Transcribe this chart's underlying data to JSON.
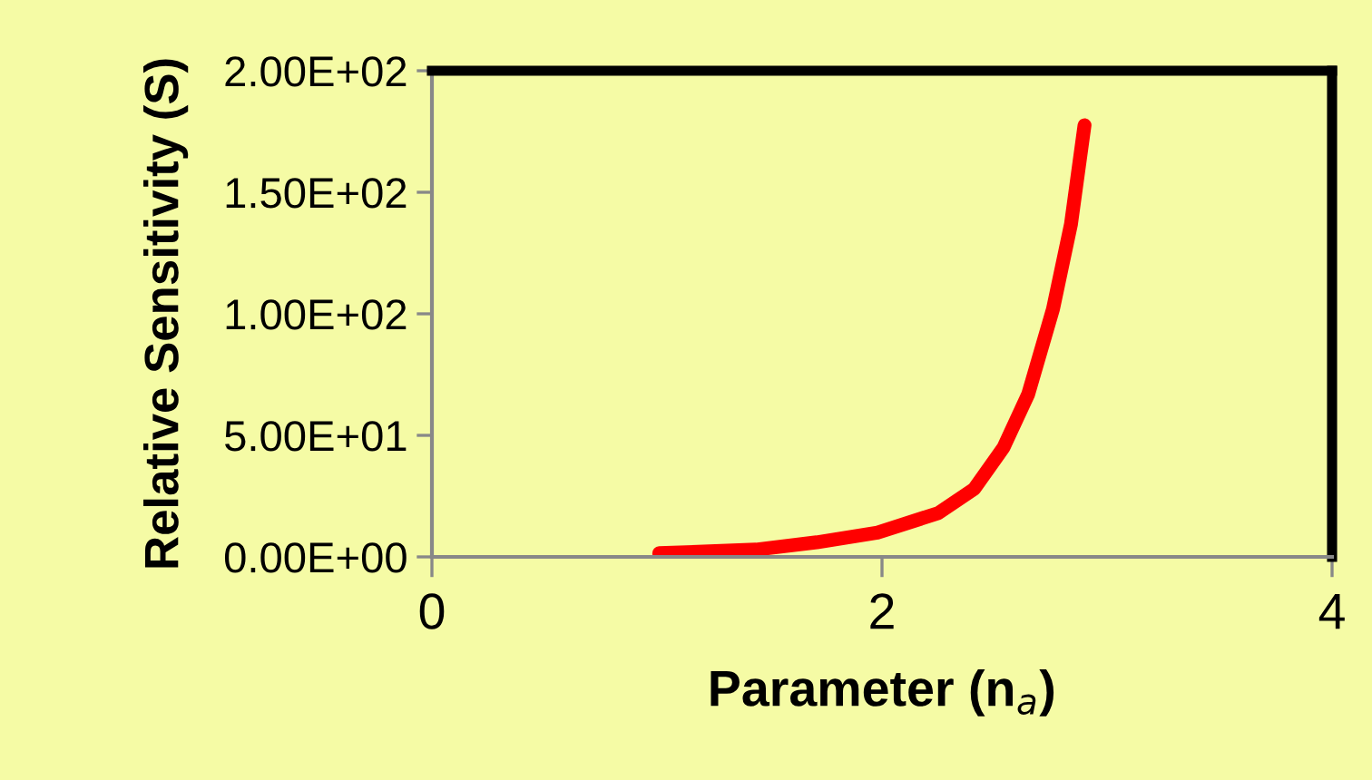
{
  "chart_data": {
    "type": "line",
    "xlabel": "Parameter (n$_{a}$)",
    "ylabel": "Relative Sensitivity (S)",
    "x": [
      1.01,
      1.44,
      1.71,
      1.98,
      2.25,
      2.41,
      2.54,
      2.65,
      2.76,
      2.84,
      2.9
    ],
    "series": [
      {
        "color": "#ff0000",
        "values": [
          1.5,
          3,
          6,
          10,
          18,
          28,
          45,
          67,
          102,
          137,
          177.6
        ]
      }
    ],
    "xlim": [
      0,
      4
    ],
    "xticks": [
      0,
      2,
      4
    ],
    "ylim": [
      0,
      200
    ],
    "yticks": [
      {
        "value": 0,
        "label": "0.00E+00"
      },
      {
        "value": 50,
        "label": "5.00E+01"
      },
      {
        "value": 100,
        "label": "1.00E+02"
      },
      {
        "value": 150,
        "label": "1.50E+02"
      },
      {
        "value": 200,
        "label": "2.00E+02"
      }
    ],
    "grid": false,
    "legend": false,
    "marker": "none",
    "line_style": "solid"
  }
}
